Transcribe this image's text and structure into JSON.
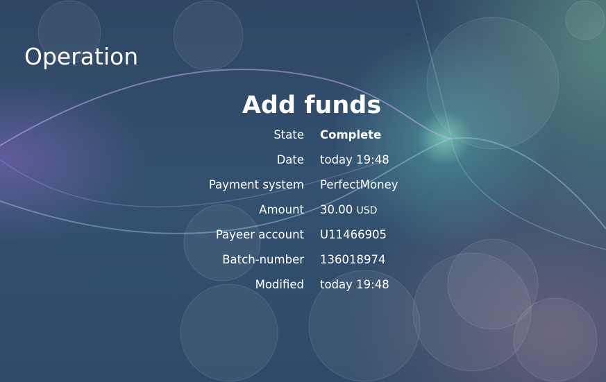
{
  "page": {
    "title": "Operation"
  },
  "operation": {
    "heading": "Add funds",
    "rows": [
      {
        "label": "State",
        "value": "Complete"
      },
      {
        "label": "Date",
        "value": "today 19:48"
      },
      {
        "label": "Payment system",
        "value": "PerfectMoney"
      },
      {
        "label": "Amount",
        "value": "30.00",
        "unit": "USD"
      },
      {
        "label": "Payeer account",
        "value": "U11466905"
      },
      {
        "label": "Batch-number",
        "value": "136018974"
      },
      {
        "label": "Modified",
        "value": "today 19:48"
      }
    ]
  },
  "colors": {
    "background": "#2f4a68",
    "text": "#ffffff",
    "glow": "#8ce6c8"
  }
}
